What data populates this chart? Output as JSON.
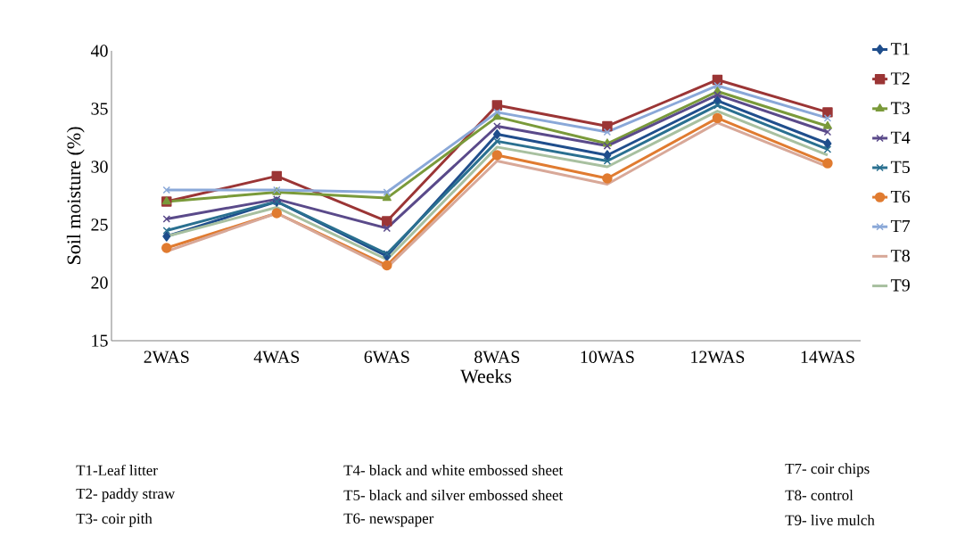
{
  "chart_data": {
    "type": "line",
    "xlabel": "Weeks",
    "ylabel": "Soil moisture (%)",
    "categories": [
      "2WAS",
      "4WAS",
      "6WAS",
      "8WAS",
      "10WAS",
      "12WAS",
      "14WAS"
    ],
    "ylim": [
      15,
      40
    ],
    "yticks": [
      15,
      20,
      25,
      30,
      35,
      40
    ],
    "grid": false,
    "legend": "right",
    "series": [
      {
        "name": "T1",
        "color": "#1f4e8c",
        "marker": "diamond",
        "values": [
          24.0,
          27.0,
          22.3,
          32.8,
          31.0,
          35.7,
          32.0
        ]
      },
      {
        "name": "T2",
        "color": "#9b3535",
        "marker": "square",
        "values": [
          27.0,
          29.2,
          25.3,
          35.3,
          33.5,
          37.5,
          34.7
        ]
      },
      {
        "name": "T3",
        "color": "#7a9a3a",
        "marker": "triangle",
        "values": [
          27.0,
          27.8,
          27.3,
          34.3,
          32.0,
          36.5,
          33.5
        ]
      },
      {
        "name": "T4",
        "color": "#5a4a8a",
        "marker": "cross",
        "values": [
          25.5,
          27.2,
          24.7,
          33.5,
          31.8,
          36.2,
          33.0
        ]
      },
      {
        "name": "T5",
        "color": "#2a7090",
        "marker": "cross",
        "values": [
          24.5,
          27.0,
          22.5,
          32.2,
          30.5,
          35.3,
          31.5
        ]
      },
      {
        "name": "T6",
        "color": "#e07b30",
        "marker": "circle",
        "values": [
          23.0,
          26.0,
          21.5,
          31.0,
          29.0,
          34.2,
          30.3
        ]
      },
      {
        "name": "T7",
        "color": "#8aa8d8",
        "marker": "cross",
        "values": [
          28.0,
          28.0,
          27.8,
          34.7,
          33.0,
          37.0,
          34.2
        ]
      },
      {
        "name": "T8",
        "color": "#d8a898",
        "marker": "none",
        "values": [
          22.7,
          26.0,
          21.3,
          30.5,
          28.5,
          33.8,
          30.0
        ]
      },
      {
        "name": "T9",
        "color": "#a8c0a0",
        "marker": "none",
        "values": [
          24.0,
          26.5,
          22.0,
          31.7,
          30.0,
          34.8,
          31.0
        ]
      }
    ],
    "annotations": [
      "T1-Leaf litter",
      "T2- paddy straw",
      "T3- coir pith",
      "T4- black and white embossed sheet",
      "T5- black and silver embossed sheet",
      "T6- newspaper",
      "T7- coir chips",
      "T8- control",
      "T9- live mulch"
    ]
  }
}
